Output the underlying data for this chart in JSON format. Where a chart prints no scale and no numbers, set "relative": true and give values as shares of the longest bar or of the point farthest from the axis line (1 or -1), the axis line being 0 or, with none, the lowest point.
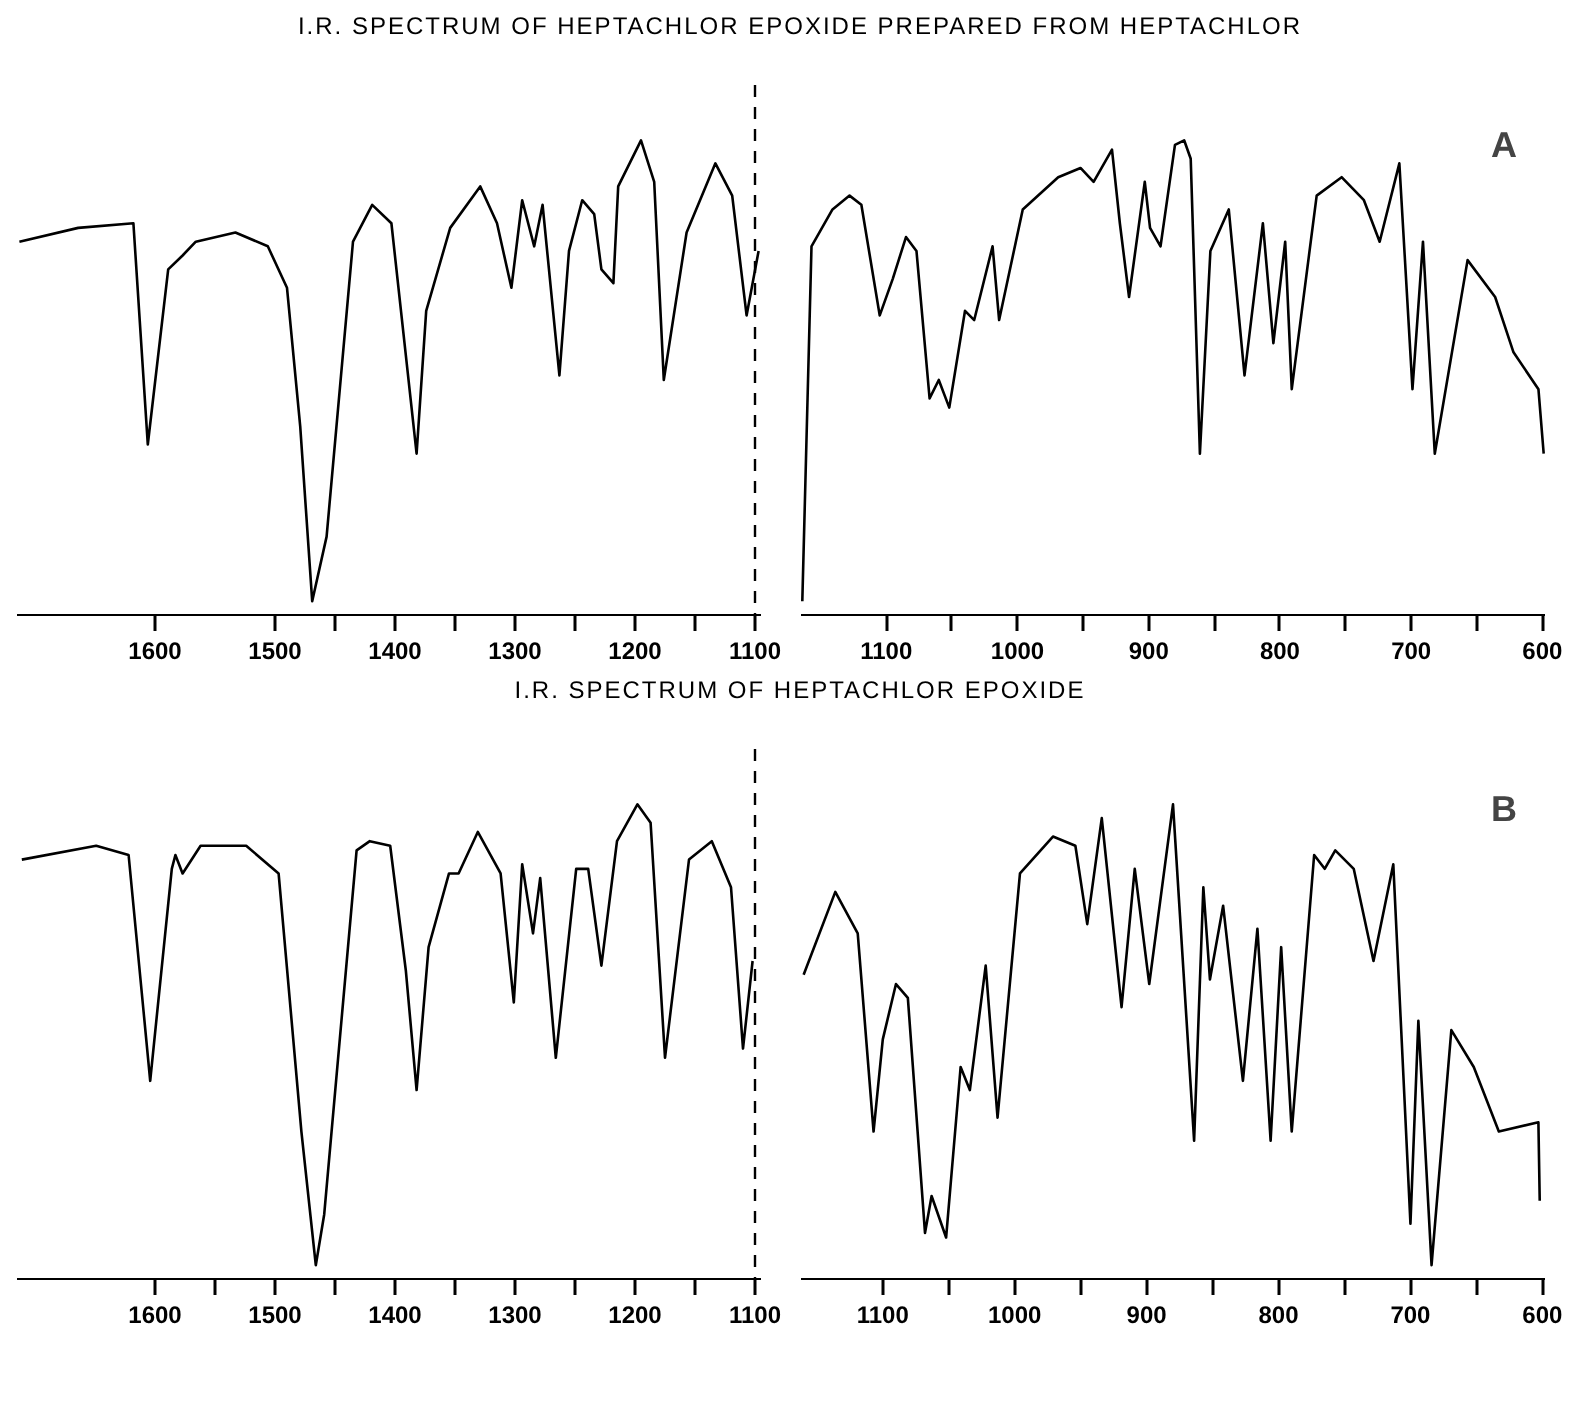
{
  "chart_data": [
    {
      "type": "line",
      "title": "I.R. SPECTRUM OF HEPTACHLOR EPOXIDE PREPARED FROM HEPTACHLOR",
      "relative": true,
      "xlim": [
        1715,
        1095
      ],
      "xticks": [
        1600,
        1500,
        1400,
        1300,
        1200,
        1100,
        {
          "value": 1450,
          "label": null
        },
        {
          "value": 1350,
          "label": null
        },
        {
          "value": 1250,
          "label": null
        },
        {
          "value": 1150,
          "label": null
        }
      ],
      "ref_lines": [
        {
          "axis": "x",
          "value": 1100,
          "line_style": "dashed"
        }
      ],
      "series": [
        {
          "color": "#000000",
          "x": [
            1713,
            1664,
            1618,
            1606,
            1589,
            1577,
            1566,
            1533,
            1506,
            1490,
            1479,
            1469,
            1457,
            1435,
            1419,
            1403,
            1382,
            1374,
            1354,
            1329,
            1315,
            1303,
            1294,
            1284,
            1277,
            1263,
            1255,
            1244,
            1234,
            1228,
            1218,
            1214,
            1195,
            1184,
            1176,
            1157,
            1133,
            1119,
            1107,
            1097
          ],
          "values": [
            0.78,
            0.81,
            0.82,
            0.34,
            0.72,
            0.75,
            0.78,
            0.8,
            0.77,
            0.68,
            0.38,
            0,
            0.14,
            0.78,
            0.86,
            0.82,
            0.32,
            0.63,
            0.81,
            0.9,
            0.82,
            0.68,
            0.87,
            0.77,
            0.86,
            0.49,
            0.76,
            0.87,
            0.84,
            0.72,
            0.69,
            0.9,
            1,
            0.91,
            0.48,
            0.8,
            0.95,
            0.88,
            0.62,
            0.76
          ]
        }
      ]
    },
    {
      "type": "line",
      "relative": true,
      "xlim": [
        1165,
        598
      ],
      "annotations": [
        "A"
      ],
      "xticks": [
        1100,
        1000,
        900,
        800,
        700,
        600,
        {
          "value": 1050,
          "label": null
        },
        {
          "value": 950,
          "label": null
        },
        {
          "value": 850,
          "label": null
        },
        {
          "value": 750,
          "label": null
        },
        {
          "value": 650,
          "label": null
        }
      ],
      "series": [
        {
          "color": "#000000",
          "x": [
            1164,
            1157,
            1141,
            1128,
            1119,
            1105,
            1095,
            1085,
            1077,
            1067,
            1060,
            1052,
            1040,
            1033,
            1019,
            1014,
            996,
            969,
            952,
            942,
            928,
            922,
            915,
            903,
            899,
            891,
            880,
            873,
            868,
            861,
            853,
            839,
            827,
            813,
            805,
            796,
            791,
            772,
            753,
            736,
            724,
            709,
            699,
            691,
            682,
            657,
            636,
            622,
            603,
            599
          ],
          "values": [
            0,
            0.77,
            0.85,
            0.88,
            0.86,
            0.62,
            0.7,
            0.79,
            0.76,
            0.44,
            0.48,
            0.42,
            0.63,
            0.61,
            0.77,
            0.61,
            0.85,
            0.92,
            0.94,
            0.91,
            0.98,
            0.82,
            0.66,
            0.91,
            0.81,
            0.77,
            0.99,
            1,
            0.96,
            0.32,
            0.76,
            0.85,
            0.49,
            0.82,
            0.56,
            0.78,
            0.46,
            0.88,
            0.92,
            0.87,
            0.78,
            0.95,
            0.46,
            0.78,
            0.32,
            0.74,
            0.66,
            0.54,
            0.46,
            0.32
          ]
        }
      ]
    },
    {
      "type": "line",
      "title": "I.R. SPECTRUM OF HEPTACHLOR EPOXIDE",
      "relative": true,
      "xlim": [
        1715,
        1095
      ],
      "xticks": [
        1600,
        1500,
        1400,
        1300,
        1200,
        1100,
        {
          "value": 1550,
          "label": null
        },
        {
          "value": 1450,
          "label": null
        },
        {
          "value": 1350,
          "label": null
        },
        {
          "value": 1250,
          "label": null
        },
        {
          "value": 1150,
          "label": null
        }
      ],
      "ref_lines": [
        {
          "axis": "x",
          "value": 1100,
          "line_style": "dashed"
        }
      ],
      "series": [
        {
          "color": "#000000",
          "x": [
            1711,
            1649,
            1622,
            1604,
            1586,
            1583,
            1577,
            1562,
            1524,
            1497,
            1478,
            1466,
            1459,
            1432,
            1421,
            1404,
            1391,
            1382,
            1372,
            1355,
            1347,
            1331,
            1312,
            1301,
            1294,
            1285,
            1279,
            1266,
            1249,
            1239,
            1228,
            1215,
            1198,
            1187,
            1175,
            1155,
            1136,
            1120,
            1110,
            1102
          ],
          "values": [
            0.88,
            0.91,
            0.89,
            0.4,
            0.86,
            0.89,
            0.85,
            0.91,
            0.91,
            0.85,
            0.29,
            0,
            0.11,
            0.9,
            0.92,
            0.91,
            0.64,
            0.38,
            0.69,
            0.85,
            0.85,
            0.94,
            0.85,
            0.57,
            0.87,
            0.72,
            0.84,
            0.45,
            0.86,
            0.86,
            0.65,
            0.92,
            1,
            0.96,
            0.45,
            0.88,
            0.92,
            0.82,
            0.47,
            0.66
          ]
        }
      ]
    },
    {
      "type": "line",
      "relative": true,
      "xlim": [
        1162,
        598
      ],
      "annotations": [
        "B"
      ],
      "xticks": [
        1100,
        1000,
        900,
        800,
        700,
        600,
        {
          "value": 1050,
          "label": null
        },
        {
          "value": 950,
          "label": null
        },
        {
          "value": 850,
          "label": null
        },
        {
          "value": 750,
          "label": null
        },
        {
          "value": 650,
          "label": null
        }
      ],
      "series": [
        {
          "color": "#000000",
          "x": [
            1160,
            1136,
            1119,
            1107,
            1100,
            1090,
            1081,
            1068,
            1063,
            1052,
            1041,
            1034,
            1022,
            1013,
            996,
            971,
            954,
            945,
            934,
            919,
            909,
            898,
            880,
            864,
            857,
            852,
            842,
            827,
            816,
            806,
            798,
            790,
            773,
            765,
            757,
            743,
            728,
            713,
            700,
            694,
            684,
            669,
            652,
            633,
            603,
            602
          ],
          "values": [
            0.63,
            0.81,
            0.72,
            0.29,
            0.49,
            0.61,
            0.58,
            0.07,
            0.15,
            0.06,
            0.43,
            0.38,
            0.65,
            0.32,
            0.85,
            0.93,
            0.91,
            0.74,
            0.97,
            0.56,
            0.86,
            0.61,
            1,
            0.27,
            0.82,
            0.62,
            0.78,
            0.4,
            0.73,
            0.27,
            0.69,
            0.29,
            0.89,
            0.86,
            0.9,
            0.86,
            0.66,
            0.87,
            0.09,
            0.53,
            0,
            0.51,
            0.43,
            0.29,
            0.31,
            0.14
          ]
        }
      ]
    }
  ]
}
